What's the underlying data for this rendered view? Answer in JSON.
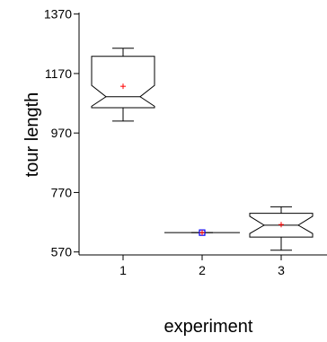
{
  "chart_data": {
    "type": "box",
    "title": "",
    "xlabel": "experiment",
    "ylabel": "tour length",
    "categories": [
      "1",
      "2",
      "3"
    ],
    "ylim": [
      560,
      1375
    ],
    "yticks": [
      570,
      770,
      970,
      1170,
      1370
    ],
    "notched": true,
    "colors": {
      "box": "#000000",
      "mean": "#ff0000",
      "outlier": "#0000ff"
    },
    "boxes": [
      {
        "category": "1",
        "min": 1010,
        "q1": 1055,
        "median": 1092,
        "q3": 1228,
        "max": 1255,
        "notch_low": 1060,
        "notch_high": 1130,
        "mean": 1127
      },
      {
        "category": "2",
        "min": 635,
        "q1": 635,
        "median": 635,
        "q3": 635,
        "max": 635,
        "notch_low": 635,
        "notch_high": 635,
        "mean": 635,
        "point": 635
      },
      {
        "category": "3",
        "min": 576,
        "q1": 620,
        "median": 660,
        "q3": 700,
        "max": 722,
        "notch_low": 632,
        "notch_high": 690,
        "mean": 662
      }
    ]
  }
}
